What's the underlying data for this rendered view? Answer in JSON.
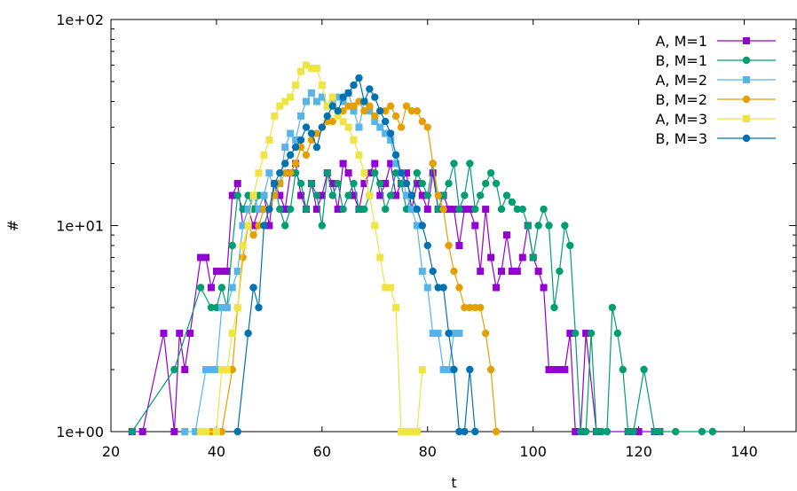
{
  "chart_data": {
    "type": "line",
    "title": "",
    "xlabel": "t",
    "ylabel": "#",
    "xlim": [
      20,
      150
    ],
    "ylim": [
      1,
      100
    ],
    "yscale": "log",
    "x_ticks": [
      "20",
      "40",
      "60",
      "80",
      "100",
      "120",
      "140"
    ],
    "y_ticks": [
      "1e+00",
      "1e+01",
      "1e+02"
    ],
    "legend_position": "top-right",
    "grid": false,
    "series": [
      {
        "name": "A, M=1",
        "color": "#9400d3",
        "marker": "square",
        "x": [
          24,
          26,
          30,
          32,
          33,
          34,
          35,
          37,
          38,
          39,
          40,
          41,
          42,
          43,
          44,
          45,
          46,
          47,
          48,
          49,
          50,
          51,
          52,
          53,
          54,
          55,
          56,
          57,
          58,
          59,
          60,
          61,
          62,
          63,
          64,
          65,
          66,
          67,
          68,
          69,
          70,
          71,
          72,
          73,
          74,
          75,
          76,
          77,
          78,
          79,
          80,
          81,
          82,
          83,
          84,
          85,
          86,
          87,
          88,
          89,
          90,
          91,
          92,
          93,
          94,
          95,
          96,
          97,
          98,
          99,
          100,
          101,
          102,
          103,
          104,
          105,
          106,
          107,
          108,
          109,
          110,
          112,
          118,
          120,
          123,
          124
        ],
        "y": [
          1,
          1,
          3,
          1,
          3,
          2,
          3,
          7,
          7,
          5,
          6,
          6,
          6,
          14,
          16,
          10,
          12,
          10,
          12,
          14,
          10,
          16,
          14,
          12,
          18,
          20,
          14,
          12,
          16,
          12,
          14,
          18,
          16,
          12,
          20,
          18,
          14,
          12,
          16,
          18,
          20,
          14,
          16,
          20,
          14,
          16,
          18,
          12,
          16,
          14,
          12,
          18,
          12,
          14,
          12,
          12,
          8,
          12,
          12,
          10,
          6,
          12,
          7,
          5,
          6,
          9,
          6,
          6,
          7,
          10,
          7,
          6,
          5,
          2,
          2,
          2,
          2,
          3,
          1,
          1,
          3,
          1,
          1,
          1,
          1,
          1
        ]
      },
      {
        "name": "B, M=1",
        "color": "#009e73",
        "marker": "circle",
        "x": [
          24,
          32,
          37,
          39,
          40,
          41,
          42,
          43,
          44,
          45,
          46,
          47,
          48,
          49,
          50,
          51,
          52,
          53,
          54,
          55,
          56,
          57,
          58,
          59,
          60,
          61,
          62,
          63,
          64,
          65,
          66,
          67,
          68,
          69,
          70,
          71,
          72,
          73,
          74,
          75,
          76,
          77,
          78,
          79,
          80,
          81,
          82,
          83,
          84,
          85,
          86,
          87,
          88,
          89,
          90,
          91,
          92,
          93,
          94,
          95,
          96,
          97,
          98,
          99,
          100,
          101,
          102,
          103,
          104,
          105,
          106,
          107,
          108,
          109,
          110,
          111,
          112,
          113,
          114,
          115,
          116,
          117,
          118,
          119,
          121,
          123,
          124,
          127,
          132,
          134
        ],
        "y": [
          1,
          2,
          5,
          4,
          4,
          5,
          4,
          8,
          14,
          12,
          14,
          12,
          14,
          14,
          12,
          16,
          12,
          10,
          12,
          18,
          16,
          12,
          16,
          14,
          10,
          18,
          14,
          16,
          12,
          14,
          16,
          12,
          12,
          14,
          18,
          16,
          12,
          14,
          18,
          16,
          12,
          14,
          18,
          16,
          14,
          20,
          12,
          14,
          16,
          20,
          12,
          14,
          20,
          12,
          14,
          16,
          18,
          16,
          12,
          14,
          13,
          12,
          12,
          10,
          7,
          10,
          12,
          10,
          4,
          6,
          10,
          8,
          3,
          1,
          1,
          3,
          1,
          1,
          1,
          4,
          3,
          2,
          1,
          1,
          2,
          1,
          1,
          1,
          1,
          1
        ]
      },
      {
        "name": "A, M=2",
        "color": "#56b4e9",
        "marker": "square",
        "x": [
          34,
          36,
          38,
          39,
          40,
          41,
          42,
          43,
          44,
          45,
          46,
          47,
          48,
          49,
          50,
          51,
          52,
          53,
          54,
          55,
          56,
          57,
          58,
          59,
          60,
          61,
          62,
          63,
          64,
          65,
          66,
          67,
          68,
          69,
          70,
          71,
          72,
          73,
          74,
          75,
          76,
          77,
          78,
          79,
          80,
          81,
          82,
          83,
          84,
          85,
          86
        ],
        "y": [
          1,
          1,
          2,
          2,
          2,
          4,
          4,
          5,
          6,
          10,
          12,
          14,
          12,
          14,
          18,
          14,
          16,
          24,
          28,
          26,
          34,
          40,
          44,
          40,
          42,
          38,
          40,
          42,
          40,
          44,
          36,
          30,
          40,
          36,
          32,
          30,
          28,
          26,
          20,
          18,
          14,
          12,
          10,
          6,
          5,
          3,
          3,
          2,
          2,
          3,
          3
        ]
      },
      {
        "name": "B, M=2",
        "color": "#e69f00",
        "marker": "circle",
        "x": [
          37,
          39,
          41,
          43,
          44,
          45,
          46,
          47,
          48,
          49,
          50,
          51,
          52,
          53,
          54,
          55,
          56,
          57,
          58,
          59,
          60,
          61,
          62,
          63,
          64,
          65,
          66,
          67,
          68,
          69,
          70,
          71,
          72,
          73,
          74,
          75,
          76,
          77,
          78,
          79,
          80,
          81,
          82,
          83,
          84,
          85,
          86,
          87,
          88,
          89,
          90,
          91,
          92,
          93
        ],
        "y": [
          1,
          1,
          1,
          2,
          4,
          7,
          10,
          9,
          10,
          12,
          12,
          14,
          16,
          18,
          18,
          20,
          24,
          22,
          26,
          28,
          30,
          32,
          32,
          34,
          36,
          38,
          38,
          40,
          36,
          38,
          34,
          36,
          36,
          38,
          34,
          30,
          38,
          36,
          36,
          32,
          30,
          20,
          14,
          12,
          8,
          6,
          5,
          4,
          4,
          4,
          4,
          3,
          2,
          1
        ]
      },
      {
        "name": "A, M=3",
        "color": "#f0e442",
        "marker": "square",
        "x": [
          37,
          38,
          40,
          41,
          42,
          43,
          44,
          45,
          46,
          47,
          48,
          49,
          50,
          51,
          52,
          53,
          54,
          55,
          56,
          57,
          58,
          59,
          60,
          61,
          62,
          63,
          64,
          65,
          66,
          67,
          68,
          69,
          70,
          71,
          72,
          73,
          74,
          75,
          76,
          77,
          78,
          79
        ],
        "y": [
          1,
          1,
          1,
          2,
          2,
          3,
          4,
          8,
          10,
          14,
          18,
          22,
          26,
          34,
          38,
          40,
          42,
          48,
          56,
          60,
          58,
          58,
          48,
          38,
          42,
          34,
          32,
          30,
          26,
          22,
          18,
          14,
          10,
          7,
          5,
          5,
          4,
          1,
          1,
          1,
          1,
          2
        ]
      },
      {
        "name": "B, M=3",
        "color": "#0072b2",
        "marker": "circle",
        "x": [
          44,
          46,
          47,
          48,
          49,
          50,
          51,
          52,
          53,
          54,
          55,
          56,
          57,
          58,
          59,
          60,
          61,
          62,
          63,
          64,
          65,
          66,
          67,
          68,
          69,
          70,
          71,
          72,
          73,
          74,
          75,
          76,
          77,
          78,
          79,
          80,
          81,
          82,
          83,
          84,
          85,
          86,
          87,
          88,
          89
        ],
        "y": [
          1,
          3,
          5,
          4,
          10,
          12,
          16,
          18,
          20,
          22,
          24,
          26,
          30,
          28,
          24,
          30,
          34,
          38,
          36,
          42,
          44,
          48,
          52,
          40,
          46,
          42,
          36,
          32,
          28,
          22,
          18,
          16,
          14,
          12,
          10,
          8,
          6,
          5,
          5,
          3,
          2,
          1,
          1,
          2,
          1
        ]
      }
    ]
  }
}
